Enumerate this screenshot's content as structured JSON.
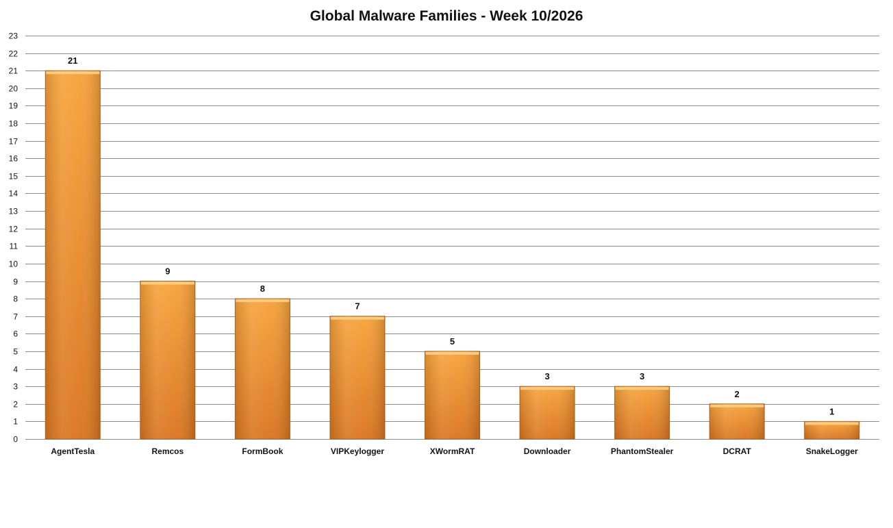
{
  "chart_data": {
    "type": "bar",
    "title": "Global Malware Families - Week 10/2026",
    "xlabel": "",
    "ylabel": "",
    "categories": [
      "AgentTesla",
      "Remcos",
      "FormBook",
      "VIPKeylogger",
      "XWormRAT",
      "Downloader",
      "PhantomStealer",
      "DCRAT",
      "SnakeLogger"
    ],
    "values": [
      21,
      9,
      8,
      7,
      5,
      3,
      3,
      2,
      1
    ],
    "ylim": [
      0,
      23
    ],
    "y_tick_step": 1,
    "grid": true,
    "legend": "none",
    "data_labels": true,
    "colors": {
      "bar_top": "#f7a23a",
      "bar_bottom": "#d9741f",
      "bar_edge": "#b8641c",
      "bar_cap": "#fbd08a",
      "grid": "#8c8c8c"
    }
  }
}
